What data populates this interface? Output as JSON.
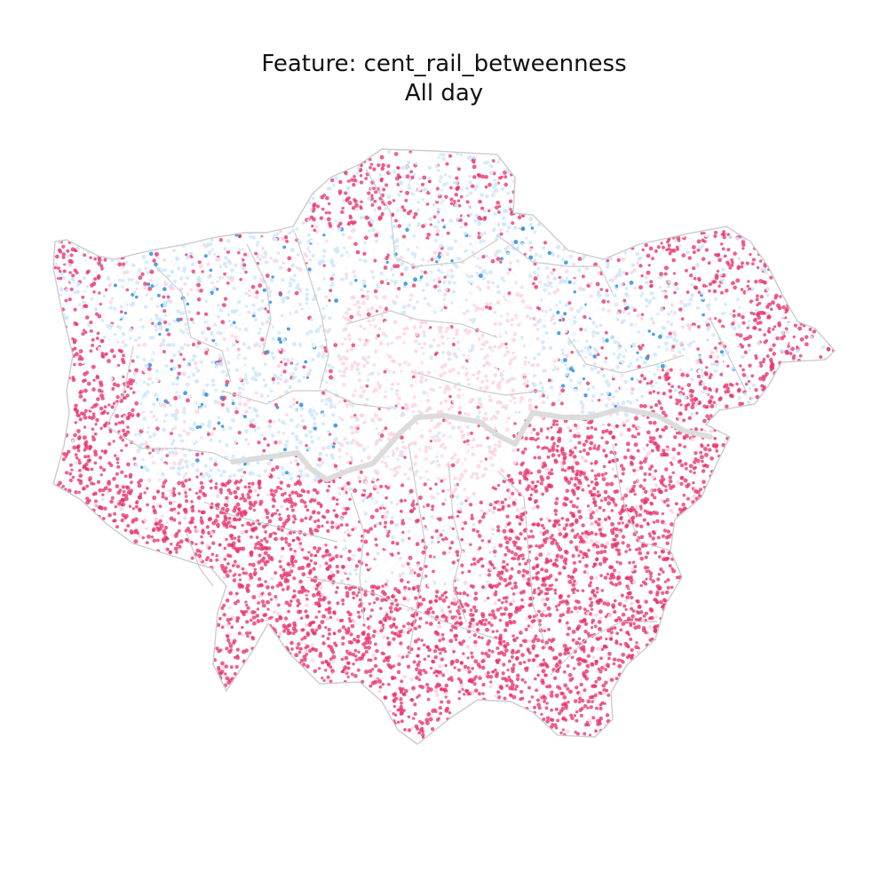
{
  "title": {
    "line1": "Feature: cent_rail_betweenness",
    "line2": "All day"
  },
  "map": {
    "region": "Greater London",
    "colormap": [
      "#e8336d",
      "#ffd3e0",
      "#f7fbff",
      "#cfe6fb",
      "#2f8fe0"
    ],
    "boundary_color": "#cccccc",
    "river_color": "#dcdcdc",
    "legend": "none",
    "axes": "off"
  }
}
